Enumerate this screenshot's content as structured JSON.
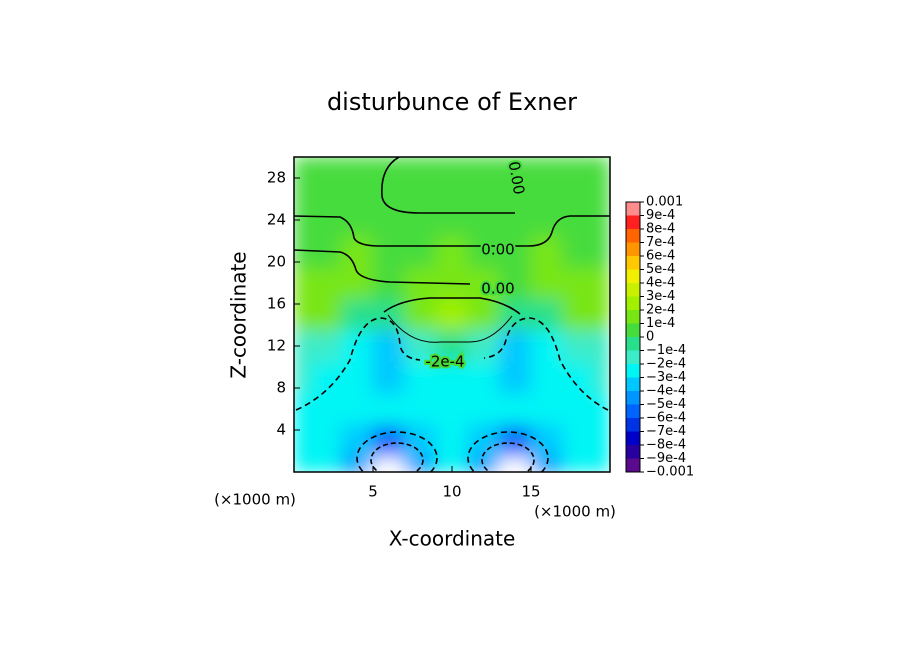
{
  "chart_data": {
    "type": "contour",
    "title": "disturbunce of Exner",
    "x_label": "X-coordinate",
    "y_label": "Z-coordinate",
    "x_unit": "(×1000 m)",
    "y_unit": "(×1000 m)",
    "xlim": [
      0,
      20
    ],
    "ylim": [
      0,
      30
    ],
    "xticks": [
      5,
      10,
      15
    ],
    "yticks": [
      4,
      8,
      12,
      16,
      20,
      24,
      28
    ],
    "x": [
      0,
      2,
      4,
      6,
      8,
      10,
      12,
      14,
      16,
      18,
      20
    ],
    "y": [
      0,
      3,
      6,
      9,
      12,
      15,
      18,
      21,
      24,
      27,
      30
    ],
    "z": [
      [
        -0.0003,
        -0.0003,
        -0.0005,
        -0.0012,
        -0.0005,
        -0.0003,
        -0.0005,
        -0.0012,
        -0.0005,
        -0.0003,
        -0.0003
      ],
      [
        -0.0003,
        -0.0003,
        -0.0004,
        -0.0006,
        -0.0004,
        -0.0003,
        -0.0004,
        -0.0006,
        -0.0004,
        -0.0003,
        -0.0003
      ],
      [
        -0.0003,
        -0.0003,
        -0.0003,
        -0.0003,
        -0.0003,
        -0.0003,
        -0.0003,
        -0.0003,
        -0.0003,
        -0.0003,
        -0.0003
      ],
      [
        -0.0002,
        -0.0003,
        -0.0003,
        -0.0004,
        -0.0003,
        -0.0003,
        -0.0003,
        -0.0004,
        -0.0003,
        -0.0003,
        -0.0002
      ],
      [
        -0.0002,
        -0.0002,
        -0.0003,
        -0.0004,
        -0.0002,
        -0.0001,
        -0.0002,
        -0.0004,
        -0.0003,
        -0.0002,
        -0.0002
      ],
      [
        0.0001,
        0.0001,
        -0.0001,
        -0.0001,
        0.0001,
        0.0002,
        0.0001,
        -0.0001,
        -0.0001,
        0.0001,
        0.0001
      ],
      [
        0.0001,
        0.0001,
        0.0001,
        0,
        0.0001,
        0.0001,
        0.0001,
        0,
        0.0001,
        0.0001,
        0.0001
      ],
      [
        0,
        0,
        0.0001,
        0,
        0,
        0.0001,
        0,
        0,
        0.0001,
        0,
        0
      ],
      [
        0,
        0,
        0,
        0,
        0,
        0,
        0,
        0,
        0,
        0,
        0
      ],
      [
        0,
        0,
        0,
        0,
        0,
        0,
        0,
        0,
        0,
        0,
        0
      ],
      [
        0,
        0,
        0,
        0,
        0,
        0,
        0,
        0,
        0,
        0,
        0
      ]
    ],
    "contour_labels": [
      "0.00",
      "0.00",
      "0.00",
      "-2e-4"
    ],
    "colorbar": {
      "levels": [
        {
          "value": -0.001,
          "label": "−0.001"
        },
        {
          "value": -0.0009,
          "label": "−9e-4"
        },
        {
          "value": -0.0008,
          "label": "−8e-4"
        },
        {
          "value": -0.0007,
          "label": "−7e-4"
        },
        {
          "value": -0.0006,
          "label": "−6e-4"
        },
        {
          "value": -0.0005,
          "label": "−5e-4"
        },
        {
          "value": -0.0004,
          "label": "−4e-4"
        },
        {
          "value": -0.0003,
          "label": "−3e-4"
        },
        {
          "value": -0.0002,
          "label": "−2e-4"
        },
        {
          "value": -0.0001,
          "label": "−1e-4"
        },
        0,
        {
          "value": 0.0001,
          "label": "1e-4"
        },
        {
          "value": 0.0002,
          "label": "2e-4"
        },
        {
          "value": 0.0003,
          "label": "3e-4"
        },
        {
          "value": 0.0004,
          "label": "4e-4"
        },
        {
          "value": 0.0005,
          "label": "5e-4"
        },
        {
          "value": 0.0006,
          "label": "6e-4"
        },
        {
          "value": 0.0007,
          "label": "7e-4"
        },
        {
          "value": 0.0008,
          "label": "8e-4"
        },
        {
          "value": 0.0009,
          "label": "9e-4"
        },
        0.001
      ],
      "colors": [
        "#5a0a8c",
        "#2800a0",
        "#0000c8",
        "#0032e6",
        "#0064ff",
        "#0096ff",
        "#00c8ff",
        "#00f5f5",
        "#3cebc8",
        "#28e08c",
        "#46dc3c",
        "#78e614",
        "#a0f000",
        "#c8f000",
        "#f0f000",
        "#ffc800",
        "#ff9600",
        "#ff6400",
        "#ff2020",
        "#ff8c8c"
      ],
      "out_of_range": "#ffffff"
    }
  }
}
